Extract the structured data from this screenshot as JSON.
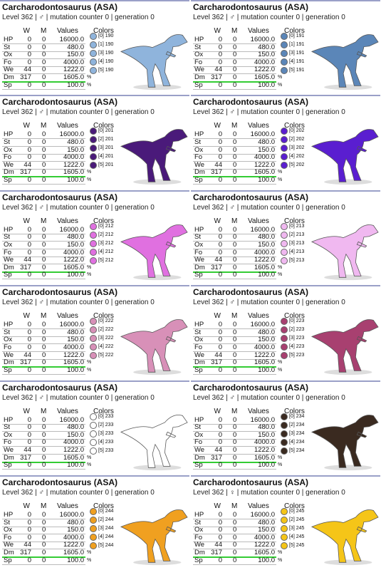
{
  "cards": [
    {
      "title": "Carcharodontosaurus (ASA)",
      "subtitle": "Level 362 | ♂ | mutation counter 0 | generation 0",
      "headers": [
        "W",
        "M",
        "Values",
        "Colors"
      ],
      "rows": [
        [
          "HP",
          "0",
          "0",
          "16000.0"
        ],
        [
          "St",
          "0",
          "0",
          "480.0"
        ],
        [
          "Ox",
          "0",
          "0",
          "150.0"
        ],
        [
          "Fo",
          "0",
          "0",
          "4000.0"
        ],
        [
          "We",
          "44",
          "0",
          "1222.0"
        ],
        [
          "Dm",
          "317",
          "0",
          "1605.0",
          "%"
        ],
        [
          "Sp",
          "0",
          "0",
          "100.0",
          "%"
        ]
      ],
      "colors": [
        {
          "label": "[0] 190",
          "color": "#8fb4dc"
        },
        {
          "label": "[1] 190",
          "color": "#8fb4dc"
        },
        {
          "label": "[3] 190",
          "color": "#8fb4dc"
        },
        {
          "label": "[4] 190",
          "color": "#8fb4dc"
        },
        {
          "label": "[5] 190",
          "color": "#8fb4dc"
        }
      ]
    },
    {
      "title": "Carcharodontosaurus (ASA)",
      "subtitle": "Level 362 | ♂ | mutation counter 0 | generation 0",
      "headers": [
        "W",
        "M",
        "Values",
        "Colors"
      ],
      "rows": [
        [
          "HP",
          "0",
          "0",
          "16000.0"
        ],
        [
          "St",
          "0",
          "0",
          "480.0"
        ],
        [
          "Ox",
          "0",
          "0",
          "150.0"
        ],
        [
          "Fo",
          "0",
          "0",
          "4000.0"
        ],
        [
          "We",
          "44",
          "0",
          "1222.0"
        ],
        [
          "Dm",
          "317",
          "0",
          "1605.0",
          "%"
        ],
        [
          "Sp",
          "0",
          "0",
          "100.0",
          "%"
        ]
      ],
      "colors": [
        {
          "label": "[0] 191",
          "color": "#5b86b8"
        },
        {
          "label": "[1] 191",
          "color": "#5b86b8"
        },
        {
          "label": "[3] 191",
          "color": "#5b86b8"
        },
        {
          "label": "[4] 191",
          "color": "#5b86b8"
        },
        {
          "label": "[5] 191",
          "color": "#5b86b8"
        }
      ]
    },
    {
      "title": "Carcharodontosaurus (ASA)",
      "subtitle": "Level 362 | ♂ | mutation counter 0 | generation 0",
      "headers": [
        "W",
        "M",
        "Values",
        "Colors"
      ],
      "rows": [
        [
          "HP",
          "0",
          "0",
          "16000.0"
        ],
        [
          "St",
          "0",
          "0",
          "480.0"
        ],
        [
          "Ox",
          "0",
          "0",
          "150.0"
        ],
        [
          "Fo",
          "0",
          "0",
          "4000.0"
        ],
        [
          "We",
          "44",
          "0",
          "1222.0"
        ],
        [
          "Dm",
          "317",
          "0",
          "1605.0",
          "%"
        ],
        [
          "Sp",
          "0",
          "0",
          "100.0",
          "%"
        ]
      ],
      "colors": [
        {
          "label": "[0] 201",
          "color": "#4a1a7a"
        },
        {
          "label": "[2] 201",
          "color": "#4a1a7a"
        },
        {
          "label": "[3] 201",
          "color": "#4a1a7a"
        },
        {
          "label": "[4] 201",
          "color": "#4a1a7a"
        },
        {
          "label": "[5] 201",
          "color": "#4a1a7a"
        }
      ]
    },
    {
      "title": "Carcharodontosaurus (ASA)",
      "subtitle": "Level 362 | ♂ | mutation counter 0 | generation 0",
      "headers": [
        "W",
        "M",
        "Values",
        "Colors"
      ],
      "rows": [
        [
          "HP",
          "0",
          "0",
          "16000.0"
        ],
        [
          "St",
          "0",
          "0",
          "480.0"
        ],
        [
          "Ox",
          "0",
          "0",
          "150.0"
        ],
        [
          "Fo",
          "0",
          "0",
          "4000.0"
        ],
        [
          "We",
          "44",
          "0",
          "1222.0"
        ],
        [
          "Dm",
          "317",
          "0",
          "1605.0",
          "%"
        ],
        [
          "Sp",
          "0",
          "0",
          "100.0",
          "%"
        ]
      ],
      "colors": [
        {
          "label": "[0] 202",
          "color": "#5a1ed0"
        },
        {
          "label": "[2] 202",
          "color": "#5a1ed0"
        },
        {
          "label": "[3] 202",
          "color": "#5a1ed0"
        },
        {
          "label": "[4] 202",
          "color": "#5a1ed0"
        },
        {
          "label": "[5] 202",
          "color": "#5a1ed0"
        }
      ]
    },
    {
      "title": "Carcharodontosaurus (ASA)",
      "subtitle": "Level 362 | ♂ | mutation counter 0 | generation 0",
      "headers": [
        "W",
        "M",
        "Values",
        "Colors"
      ],
      "rows": [
        [
          "HP",
          "0",
          "0",
          "16000.0"
        ],
        [
          "St",
          "0",
          "0",
          "480.0"
        ],
        [
          "Ox",
          "0",
          "0",
          "150.0"
        ],
        [
          "Fo",
          "0",
          "0",
          "4000.0"
        ],
        [
          "We",
          "44",
          "0",
          "1222.0"
        ],
        [
          "Dm",
          "317",
          "0",
          "1605.0",
          "%"
        ],
        [
          "Sp",
          "0",
          "0",
          "100.0",
          "%"
        ]
      ],
      "colors": [
        {
          "label": "[0] 212",
          "color": "#e070e0"
        },
        {
          "label": "[2] 212",
          "color": "#e070e0"
        },
        {
          "label": "[3] 212",
          "color": "#e070e0"
        },
        {
          "label": "[4] 212",
          "color": "#e070e0"
        },
        {
          "label": "[5] 212",
          "color": "#e070e0"
        }
      ]
    },
    {
      "title": "Carcharodontosaurus (ASA)",
      "subtitle": "Level 362 | ♂ | mutation counter 0 | generation 0",
      "headers": [
        "W",
        "M",
        "Values",
        "Colors"
      ],
      "rows": [
        [
          "HP",
          "0",
          "0",
          "16000.0"
        ],
        [
          "St",
          "0",
          "0",
          "480.0"
        ],
        [
          "Ox",
          "0",
          "0",
          "150.0"
        ],
        [
          "Fo",
          "0",
          "0",
          "4000.0"
        ],
        [
          "We",
          "44",
          "0",
          "1222.0"
        ],
        [
          "Dm",
          "317",
          "0",
          "1605.0",
          "%"
        ],
        [
          "Sp",
          "0",
          "0",
          "100.0",
          "%"
        ]
      ],
      "colors": [
        {
          "label": "[0] 213",
          "color": "#f0b8f0"
        },
        {
          "label": "[2] 213",
          "color": "#f0b8f0"
        },
        {
          "label": "[3] 213",
          "color": "#f0b8f0"
        },
        {
          "label": "[4] 213",
          "color": "#f0b8f0"
        },
        {
          "label": "[5] 213",
          "color": "#f0b8f0"
        }
      ]
    },
    {
      "title": "Carcharodontosaurus (ASA)",
      "subtitle": "Level 362 | ♂ | mutation counter 0 | generation 0",
      "headers": [
        "W",
        "M",
        "Values",
        "Colors"
      ],
      "rows": [
        [
          "HP",
          "0",
          "0",
          "16000.0"
        ],
        [
          "St",
          "0",
          "0",
          "480.0"
        ],
        [
          "Ox",
          "0",
          "0",
          "150.0"
        ],
        [
          "Fo",
          "0",
          "0",
          "4000.0"
        ],
        [
          "We",
          "44",
          "0",
          "1222.0"
        ],
        [
          "Dm",
          "317",
          "0",
          "1605.0",
          "%"
        ],
        [
          "Sp",
          "0",
          "0",
          "100.0",
          "%"
        ]
      ],
      "colors": [
        {
          "label": "[0] 222",
          "color": "#d890b8"
        },
        {
          "label": "[2] 222",
          "color": "#d890b8"
        },
        {
          "label": "[3] 222",
          "color": "#d890b8"
        },
        {
          "label": "[4] 222",
          "color": "#d890b8"
        },
        {
          "label": "[5] 222",
          "color": "#d890b8"
        }
      ]
    },
    {
      "title": "Carcharodontosaurus (ASA)",
      "subtitle": "Level 362 | ♂ | mutation counter 0 | generation 0",
      "headers": [
        "W",
        "M",
        "Values",
        "Colors"
      ],
      "rows": [
        [
          "HP",
          "0",
          "0",
          "16000.0"
        ],
        [
          "St",
          "0",
          "0",
          "480.0"
        ],
        [
          "Ox",
          "0",
          "0",
          "150.0"
        ],
        [
          "Fo",
          "0",
          "0",
          "4000.0"
        ],
        [
          "We",
          "44",
          "0",
          "1222.0"
        ],
        [
          "Dm",
          "317",
          "0",
          "1605.0",
          "%"
        ],
        [
          "Sp",
          "0",
          "0",
          "100.0",
          "%"
        ]
      ],
      "colors": [
        {
          "label": "[0] 223",
          "color": "#a84070"
        },
        {
          "label": "[2] 223",
          "color": "#a84070"
        },
        {
          "label": "[3] 223",
          "color": "#a84070"
        },
        {
          "label": "[4] 223",
          "color": "#a84070"
        },
        {
          "label": "[5] 223",
          "color": "#a84070"
        }
      ]
    },
    {
      "title": "Carcharodontosaurus (ASA)",
      "subtitle": "Level 362 | ♂ | mutation counter 0 | generation 0",
      "headers": [
        "W",
        "M",
        "Values",
        "Colors"
      ],
      "rows": [
        [
          "HP",
          "0",
          "0",
          "16000.0"
        ],
        [
          "St",
          "0",
          "0",
          "480.0"
        ],
        [
          "Ox",
          "0",
          "0",
          "150.0"
        ],
        [
          "Fo",
          "0",
          "0",
          "4000.0"
        ],
        [
          "We",
          "44",
          "0",
          "1222.0"
        ],
        [
          "Dm",
          "317",
          "0",
          "1605.0",
          "%"
        ],
        [
          "Sp",
          "0",
          "0",
          "100.0",
          "%"
        ]
      ],
      "colors": [
        {
          "label": "[0] 233",
          "color": "#ffffff"
        },
        {
          "label": "[2] 233",
          "color": "#ffffff"
        },
        {
          "label": "[3] 233",
          "color": "#ffffff"
        },
        {
          "label": "[4] 233",
          "color": "#ffffff"
        },
        {
          "label": "[5] 233",
          "color": "#ffffff"
        }
      ]
    },
    {
      "title": "Carcharodontosaurus (ASA)",
      "subtitle": "Level 362 | ♂ | mutation counter 0 | generation 0",
      "headers": [
        "W",
        "M",
        "Values",
        "Colors"
      ],
      "rows": [
        [
          "HP",
          "0",
          "0",
          "16000.0"
        ],
        [
          "St",
          "0",
          "0",
          "480.0"
        ],
        [
          "Ox",
          "0",
          "0",
          "150.0"
        ],
        [
          "Fo",
          "0",
          "0",
          "4000.0"
        ],
        [
          "We",
          "44",
          "0",
          "1222.0"
        ],
        [
          "Dm",
          "317",
          "0",
          "1605.0",
          "%"
        ],
        [
          "Sp",
          "0",
          "0",
          "100.0",
          "%"
        ]
      ],
      "colors": [
        {
          "label": "[0] 234",
          "color": "#3a2a20"
        },
        {
          "label": "[2] 234",
          "color": "#3a2a20"
        },
        {
          "label": "[3] 234",
          "color": "#3a2a20"
        },
        {
          "label": "[4] 234",
          "color": "#3a2a20"
        },
        {
          "label": "[5] 234",
          "color": "#3a2a20"
        }
      ]
    },
    {
      "title": "Carcharodontosaurus (ASA)",
      "subtitle": "Level 362 | ♂ | mutation counter 0 | generation 0",
      "headers": [
        "W",
        "M",
        "Values",
        "Colors"
      ],
      "rows": [
        [
          "HP",
          "0",
          "0",
          "16000.0"
        ],
        [
          "St",
          "0",
          "0",
          "480.0"
        ],
        [
          "Ox",
          "0",
          "0",
          "150.0"
        ],
        [
          "Fo",
          "0",
          "0",
          "4000.0"
        ],
        [
          "We",
          "44",
          "0",
          "1222.0"
        ],
        [
          "Dm",
          "317",
          "0",
          "1605.0",
          "%"
        ],
        [
          "Sp",
          "0",
          "0",
          "100.0",
          "%"
        ]
      ],
      "colors": [
        {
          "label": "[0] 244",
          "color": "#f0a020"
        },
        {
          "label": "[2] 244",
          "color": "#f0a020"
        },
        {
          "label": "[3] 244",
          "color": "#f0a020"
        },
        {
          "label": "[4] 244",
          "color": "#f0a020"
        },
        {
          "label": "[5] 244",
          "color": "#f0a020"
        }
      ]
    },
    {
      "title": "Carcharodontosaurus (ASA)",
      "subtitle": "Level 362 | ♀ | mutation counter 0 | generation 0",
      "headers": [
        "W",
        "M",
        "Values",
        "Colors"
      ],
      "rows": [
        [
          "HP",
          "0",
          "0",
          "16000.0"
        ],
        [
          "St",
          "0",
          "0",
          "480.0"
        ],
        [
          "Ox",
          "0",
          "0",
          "150.0"
        ],
        [
          "Fo",
          "0",
          "0",
          "4000.0"
        ],
        [
          "We",
          "44",
          "0",
          "1222.0"
        ],
        [
          "Dm",
          "317",
          "0",
          "1605.0",
          "%"
        ],
        [
          "Sp",
          "0",
          "0",
          "100.0",
          "%"
        ]
      ],
      "colors": [
        {
          "label": "[0] 245",
          "color": "#f5c518"
        },
        {
          "label": "[2] 245",
          "color": "#f5c518"
        },
        {
          "label": "[3] 245",
          "color": "#f5c518"
        },
        {
          "label": "[4] 245",
          "color": "#f5c518"
        },
        {
          "label": "[5] 245",
          "color": "#f5c518"
        }
      ]
    }
  ]
}
